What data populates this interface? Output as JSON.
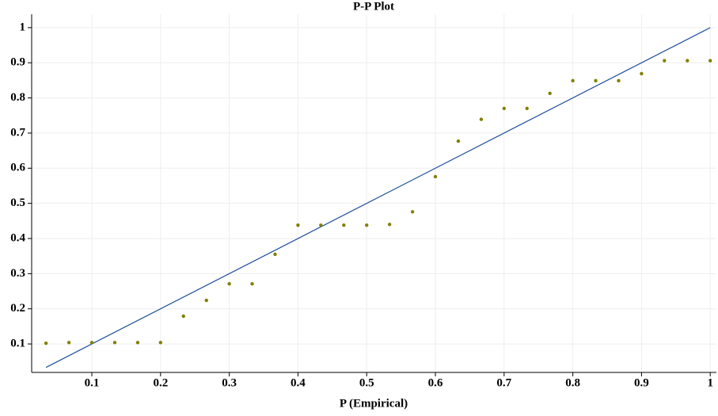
{
  "chart_data": {
    "type": "scatter",
    "title": "P-P Plot",
    "x_label": "P (Empirical)",
    "xlim": [
      0.0124,
      1.009
    ],
    "ylim": [
      0.019,
      1.038
    ],
    "xticks": [
      0.1,
      0.2,
      0.3,
      0.4,
      0.5,
      0.6,
      0.7,
      0.8,
      0.9,
      1
    ],
    "yticks": [
      0.1,
      0.2,
      0.3,
      0.4,
      0.5,
      0.6,
      0.7,
      0.8,
      0.9,
      1
    ],
    "grid": true,
    "points": {
      "color": "#808000",
      "x": [
        0.0333,
        0.0667,
        0.1,
        0.1333,
        0.1667,
        0.2,
        0.2333,
        0.2667,
        0.3,
        0.3333,
        0.3667,
        0.4,
        0.4333,
        0.4667,
        0.5,
        0.5333,
        0.5667,
        0.6,
        0.6333,
        0.6667,
        0.7,
        0.7333,
        0.7667,
        0.8,
        0.8333,
        0.8667,
        0.9,
        0.9333,
        0.9667,
        1
      ],
      "y": [
        0.102,
        0.104,
        0.104,
        0.104,
        0.104,
        0.104,
        0.179,
        0.224,
        0.271,
        0.271,
        0.355,
        0.438,
        0.438,
        0.438,
        0.438,
        0.44,
        0.476,
        0.576,
        0.677,
        0.739,
        0.77,
        0.77,
        0.813,
        0.849,
        0.849,
        0.849,
        0.869,
        0.906,
        0.906,
        0.906
      ]
    },
    "reference_line": {
      "color": "#1f4e9c",
      "x": [
        0.0333,
        1
      ],
      "y": [
        0.0333,
        1
      ]
    }
  }
}
